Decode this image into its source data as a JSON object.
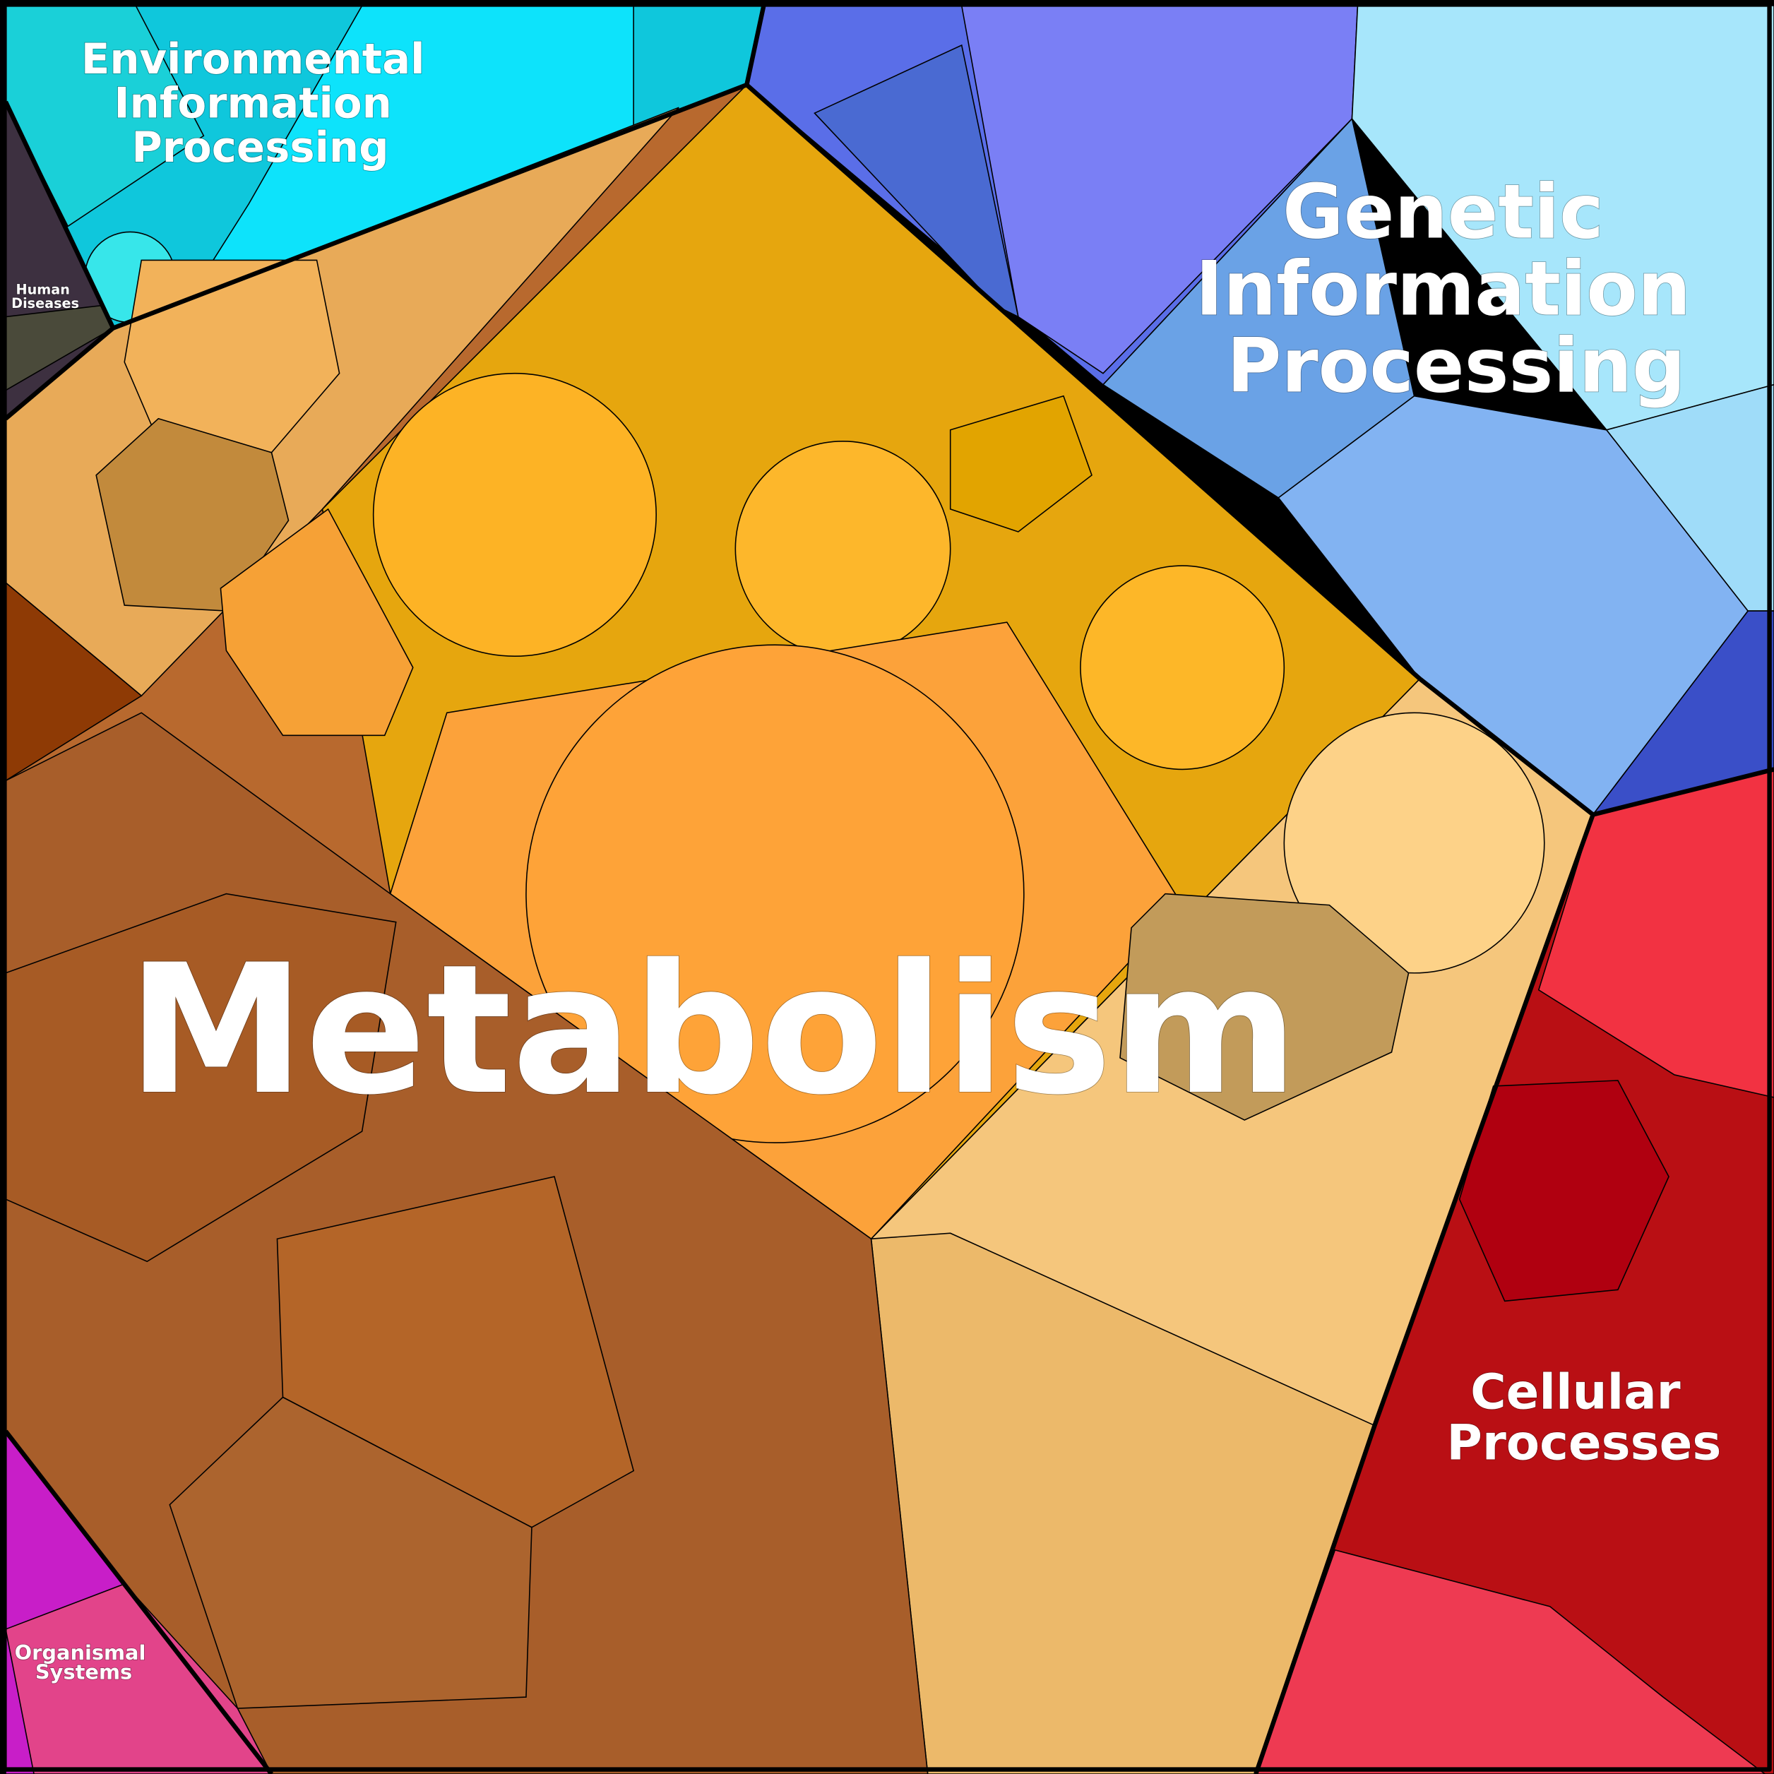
{
  "regions": [
    {
      "lines": [
        "Environmental",
        "Information",
        "Processing"
      ]
    },
    {
      "lines": [
        "Human",
        "Diseases"
      ]
    },
    {
      "lines": [
        "Genetic",
        "Information",
        "Processing"
      ]
    },
    {
      "lines": [
        "Metabolism"
      ]
    },
    {
      "lines": [
        "Cellular",
        "Processes"
      ]
    },
    {
      "lines": [
        "Organismal",
        "Systems"
      ]
    }
  ]
}
